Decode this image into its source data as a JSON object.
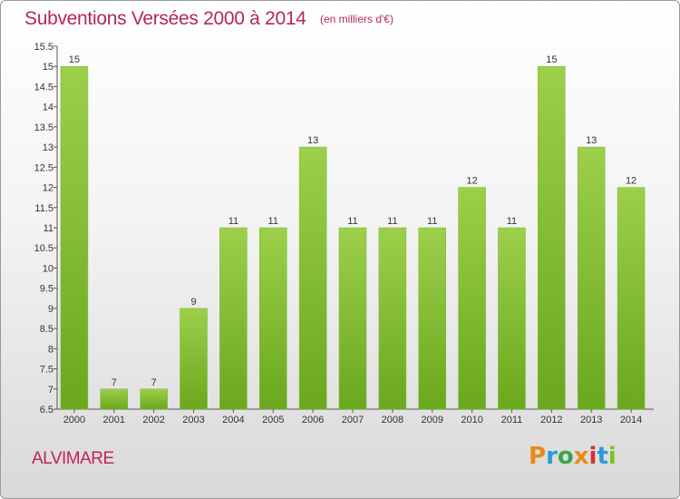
{
  "title": "Subventions Versées 2000 à 2014",
  "subtitle": "(en milliers d'€)",
  "commune": "ALVIMARE",
  "logo": {
    "text": "Proxiti",
    "letters": [
      "P",
      "r",
      "o",
      "x",
      "i",
      "t",
      "i"
    ],
    "colors": [
      "#e8891a",
      "#2a9bd6",
      "#3aa64a",
      "#e8891a",
      "#d6322f",
      "#2a9bd6",
      "#7fbf2a"
    ]
  },
  "colors": {
    "bar_top": "#9ccf4a",
    "bar_bottom": "#6aa81e",
    "accent": "#b5265d"
  },
  "chart_data": {
    "type": "bar",
    "categories": [
      "2000",
      "2001",
      "2002",
      "2003",
      "2004",
      "2005",
      "2006",
      "2007",
      "2008",
      "2009",
      "2010",
      "2011",
      "2012",
      "2013",
      "2014"
    ],
    "values": [
      15,
      7,
      7,
      9,
      11,
      11,
      13,
      11,
      11,
      11,
      12,
      11,
      15,
      13,
      12
    ],
    "title": "Subventions Versées 2000 à 2014",
    "subtitle": "(en milliers d'€)",
    "xlabel": "",
    "ylabel": "",
    "ylim": [
      6.5,
      15.5
    ],
    "yticks": [
      "6.5",
      "7",
      "7.5",
      "8",
      "8.5",
      "9",
      "9.5",
      "10",
      "10.5",
      "11",
      "11.5",
      "12",
      "12.5",
      "13",
      "13.5",
      "14",
      "14.5",
      "15",
      "15.5"
    ],
    "grid": false,
    "legend": "none"
  }
}
